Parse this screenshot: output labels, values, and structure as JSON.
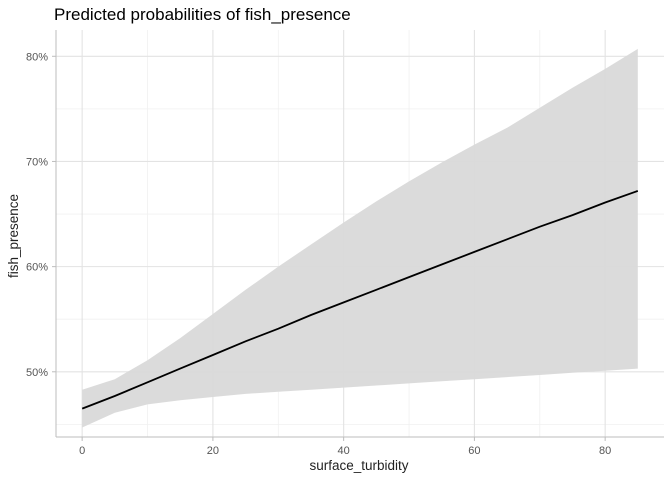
{
  "chart_data": {
    "type": "line",
    "title": "Predicted probabilities of fish_presence",
    "xlabel": "surface_turbidity",
    "ylabel": "fish_presence",
    "xlim": [
      -4,
      89
    ],
    "ylim": [
      0.438,
      0.825
    ],
    "x_ticks": [
      0,
      20,
      40,
      60,
      80
    ],
    "x_tick_labels": [
      "0",
      "20",
      "40",
      "60",
      "80"
    ],
    "x_minor_ticks": [
      10,
      30,
      50,
      70
    ],
    "y_ticks": [
      0.5,
      0.6,
      0.7,
      0.8
    ],
    "y_tick_labels": [
      "50%",
      "60%",
      "70%",
      "80%"
    ],
    "y_minor_ticks": [
      0.45,
      0.55,
      0.65,
      0.75
    ],
    "grid": true,
    "legend": "none",
    "series": [
      {
        "x": [
          0,
          5,
          10,
          15,
          20,
          25,
          30,
          35,
          40,
          45,
          50,
          55,
          60,
          65,
          70,
          75,
          80,
          85
        ],
        "values": [
          0.465,
          0.477,
          0.49,
          0.503,
          0.516,
          0.529,
          0.541,
          0.554,
          0.566,
          0.578,
          0.59,
          0.602,
          0.614,
          0.626,
          0.638,
          0.649,
          0.661,
          0.672
        ],
        "lower": [
          0.447,
          0.461,
          0.469,
          0.473,
          0.476,
          0.479,
          0.481,
          0.483,
          0.485,
          0.487,
          0.489,
          0.491,
          0.493,
          0.495,
          0.497,
          0.499,
          0.501,
          0.503
        ],
        "upper": [
          0.483,
          0.493,
          0.511,
          0.532,
          0.555,
          0.578,
          0.6,
          0.621,
          0.642,
          0.662,
          0.681,
          0.699,
          0.716,
          0.732,
          0.751,
          0.77,
          0.788,
          0.807
        ]
      }
    ],
    "colors": {
      "line": "#000000",
      "band": "#d9d9d9"
    }
  }
}
